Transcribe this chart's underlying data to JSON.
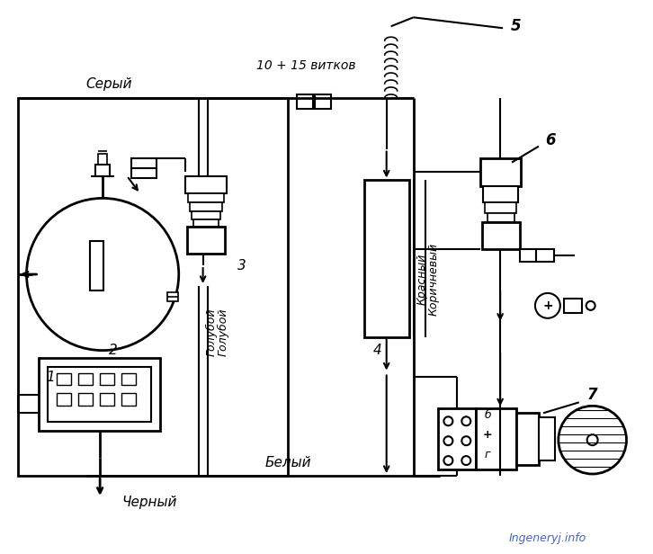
{
  "bg_color": "#ffffff",
  "line_color": "#000000",
  "watermark_color": "#4466bb",
  "watermark": "Ingeneryj.info",
  "labels": {
    "gray": "Серый",
    "blue1": "Голубой",
    "blue2": "Голубой",
    "red": "Красный",
    "brown": "Коричневый",
    "white": "Белый",
    "black": "Черный",
    "coil": "10 + 15 витков",
    "num5": "5",
    "num6": "6",
    "num7": "7",
    "num1": "1",
    "num2": "2",
    "num3": "3",
    "num4": "4",
    "plus": "+",
    "b_label": "б",
    "r_label": "г"
  },
  "figsize": [
    7.26,
    6.16
  ],
  "dpi": 100
}
